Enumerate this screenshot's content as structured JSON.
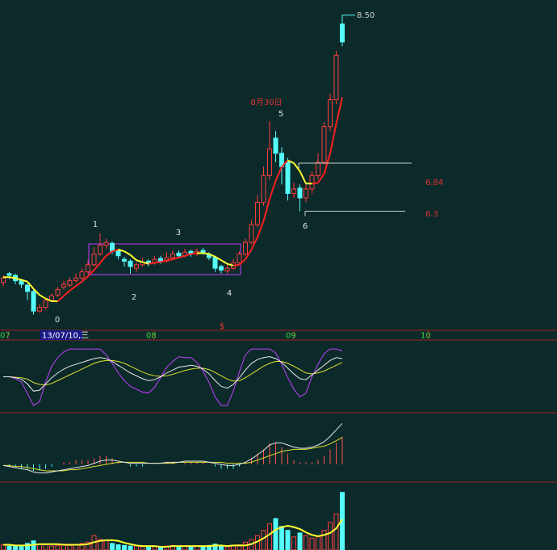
{
  "chart_data": {
    "type": "candlestick",
    "up_color": "#ff3c3c",
    "down_color": "#54fcfc",
    "ylim": [
      5.0,
      8.67
    ],
    "open": [
      5.5,
      5.6,
      5.58,
      5.52,
      5.47,
      5.4,
      5.18,
      5.22,
      5.3,
      5.36,
      5.45,
      5.47,
      5.52,
      5.55,
      5.62,
      5.7,
      5.82,
      5.92,
      5.94,
      5.86,
      5.76,
      5.74,
      5.66,
      5.7,
      5.74,
      5.72,
      5.77,
      5.74,
      5.78,
      5.83,
      5.8,
      5.85,
      5.82,
      5.86,
      5.82,
      5.78,
      5.68,
      5.63,
      5.66,
      5.72,
      5.82,
      5.95,
      6.15,
      6.4,
      6.7,
      7.12,
      6.95,
      6.85,
      6.5,
      6.56,
      6.45,
      6.55,
      6.7,
      6.85,
      7.25,
      7.55,
      8.4
    ],
    "high": [
      5.58,
      5.62,
      5.6,
      5.54,
      5.49,
      5.42,
      5.26,
      5.32,
      5.38,
      5.45,
      5.52,
      5.56,
      5.6,
      5.66,
      5.75,
      5.9,
      6.05,
      5.99,
      5.96,
      5.88,
      5.79,
      5.76,
      5.73,
      5.78,
      5.76,
      5.8,
      5.8,
      5.84,
      5.86,
      5.86,
      5.88,
      5.87,
      5.88,
      5.89,
      5.84,
      5.8,
      5.7,
      5.7,
      5.76,
      5.85,
      5.99,
      6.2,
      6.48,
      6.8,
      7.31,
      7.2,
      7.02,
      6.9,
      6.62,
      6.6,
      6.6,
      6.75,
      6.95,
      7.3,
      7.62,
      8.1,
      8.5
    ],
    "low": [
      5.46,
      5.54,
      5.48,
      5.44,
      5.3,
      5.14,
      5.16,
      5.2,
      5.28,
      5.33,
      5.42,
      5.45,
      5.5,
      5.53,
      5.6,
      5.68,
      5.8,
      5.88,
      5.82,
      5.76,
      5.68,
      5.6,
      5.62,
      5.68,
      5.68,
      5.7,
      5.71,
      5.72,
      5.76,
      5.77,
      5.78,
      5.79,
      5.8,
      5.81,
      5.75,
      5.62,
      5.6,
      5.6,
      5.64,
      5.7,
      5.8,
      5.93,
      6.12,
      6.36,
      6.65,
      6.85,
      6.6,
      6.42,
      6.45,
      6.3,
      6.4,
      6.5,
      6.66,
      6.82,
      7.2,
      7.5,
      8.15
    ],
    "close": [
      5.55,
      5.58,
      5.52,
      5.48,
      5.4,
      5.18,
      5.22,
      5.3,
      5.35,
      5.42,
      5.48,
      5.52,
      5.55,
      5.62,
      5.7,
      5.82,
      5.92,
      5.95,
      5.85,
      5.8,
      5.74,
      5.68,
      5.7,
      5.73,
      5.72,
      5.76,
      5.74,
      5.78,
      5.82,
      5.8,
      5.84,
      5.82,
      5.85,
      5.83,
      5.78,
      5.66,
      5.64,
      5.66,
      5.72,
      5.82,
      5.95,
      6.15,
      6.4,
      6.7,
      7.0,
      6.95,
      6.8,
      6.5,
      6.55,
      6.45,
      6.55,
      6.7,
      6.85,
      7.25,
      7.55,
      8.05,
      8.2
    ],
    "ma": [
      5.56,
      5.56,
      5.55,
      5.53,
      5.51,
      5.43,
      5.36,
      5.32,
      5.29,
      5.29,
      5.35,
      5.41,
      5.46,
      5.51,
      5.57,
      5.64,
      5.72,
      5.8,
      5.85,
      5.87,
      5.85,
      5.81,
      5.75,
      5.73,
      5.71,
      5.72,
      5.73,
      5.75,
      5.76,
      5.78,
      5.8,
      5.82,
      5.83,
      5.83,
      5.82,
      5.79,
      5.75,
      5.71,
      5.69,
      5.7,
      5.76,
      5.87,
      6.01,
      6.19,
      6.44,
      6.64,
      6.8,
      6.87,
      6.84,
      6.75,
      6.61,
      6.61,
      6.62,
      6.72,
      6.95,
      7.28,
      7.58
    ],
    "annotations": [
      "0",
      "1",
      "2",
      "3",
      "4",
      "5",
      "6",
      "8月30日"
    ],
    "levels": [
      6.84,
      6.3
    ],
    "max_label": {
      "value": 8.5,
      "label": "8.50"
    },
    "date_labels": [
      "07",
      "08",
      "09",
      "10"
    ],
    "cursor_date": "13/07/10,三",
    "marker": "$",
    "kdj": {
      "ylim": [
        -20,
        120
      ],
      "k": [
        50,
        50,
        48,
        45,
        35,
        20,
        22,
        35,
        48,
        58,
        66,
        72,
        76,
        80,
        84,
        88,
        90,
        88,
        82,
        74,
        66,
        58,
        52,
        46,
        42,
        44,
        50,
        58,
        64,
        70,
        72,
        74,
        72,
        66,
        56,
        42,
        30,
        26,
        34,
        48,
        64,
        78,
        86,
        90,
        92,
        88,
        80,
        68,
        56,
        46,
        44,
        54,
        64,
        74,
        84,
        90,
        88
      ],
      "d": [
        50,
        50,
        49,
        48,
        45,
        38,
        34,
        33,
        36,
        42,
        48,
        54,
        60,
        66,
        72,
        78,
        82,
        84,
        84,
        82,
        78,
        72,
        66,
        60,
        55,
        52,
        51,
        52,
        55,
        59,
        63,
        66,
        68,
        68,
        65,
        59,
        52,
        45,
        41,
        42,
        48,
        56,
        64,
        72,
        78,
        82,
        82,
        78,
        72,
        65,
        58,
        56,
        58,
        62,
        68,
        74,
        80
      ],
      "j": [
        50,
        50,
        46,
        39,
        15,
        -10,
        -2,
        39,
        72,
        90,
        102,
        108,
        108,
        108,
        108,
        108,
        108,
        96,
        78,
        58,
        42,
        30,
        24,
        18,
        16,
        28,
        48,
        70,
        82,
        92,
        90,
        90,
        80,
        62,
        38,
        8,
        -10,
        -10,
        20,
        60,
        96,
        108,
        108,
        108,
        108,
        100,
        76,
        48,
        24,
        8,
        16,
        50,
        76,
        98,
        108,
        108,
        104
      ]
    },
    "macd": {
      "ylim": [
        -0.15,
        0.45
      ],
      "dif": [
        -0.01,
        -0.02,
        -0.03,
        -0.04,
        -0.05,
        -0.07,
        -0.08,
        -0.08,
        -0.07,
        -0.06,
        -0.05,
        -0.04,
        -0.03,
        -0.02,
        -0.01,
        0.01,
        0.03,
        0.04,
        0.04,
        0.03,
        0.02,
        0.01,
        0.01,
        0.01,
        0.01,
        0.01,
        0.01,
        0.02,
        0.02,
        0.02,
        0.03,
        0.03,
        0.03,
        0.03,
        0.02,
        0.01,
        0.0,
        -0.01,
        -0.01,
        0.0,
        0.02,
        0.05,
        0.09,
        0.13,
        0.18,
        0.2,
        0.2,
        0.18,
        0.16,
        0.15,
        0.15,
        0.16,
        0.18,
        0.21,
        0.26,
        0.32,
        0.38
      ],
      "dea": [
        -0.01,
        -0.01,
        -0.02,
        -0.02,
        -0.03,
        -0.04,
        -0.05,
        -0.06,
        -0.06,
        -0.06,
        -0.06,
        -0.05,
        -0.05,
        -0.04,
        -0.03,
        -0.02,
        -0.01,
        0.0,
        0.01,
        0.02,
        0.02,
        0.02,
        0.02,
        0.02,
        0.01,
        0.01,
        0.01,
        0.01,
        0.01,
        0.02,
        0.02,
        0.02,
        0.02,
        0.02,
        0.02,
        0.02,
        0.02,
        0.01,
        0.01,
        0.01,
        0.01,
        0.02,
        0.04,
        0.06,
        0.08,
        0.1,
        0.12,
        0.13,
        0.14,
        0.14,
        0.14,
        0.15,
        0.16,
        0.17,
        0.19,
        0.22,
        0.25
      ],
      "hist": [
        0,
        -0.02,
        -0.02,
        -0.04,
        -0.04,
        -0.06,
        -0.06,
        -0.04,
        -0.02,
        0,
        0.02,
        0.02,
        0.04,
        0.04,
        0.04,
        0.06,
        0.08,
        0.08,
        0.06,
        0.02,
        0,
        -0.02,
        -0.02,
        -0.02,
        0,
        0,
        0,
        0.02,
        0.02,
        0,
        0.02,
        0.02,
        0.02,
        0.02,
        0,
        -0.02,
        -0.04,
        -0.04,
        -0.04,
        -0.02,
        0.02,
        0.06,
        0.1,
        0.14,
        0.2,
        0.2,
        0.16,
        0.1,
        0.04,
        0.02,
        0.02,
        0.02,
        0.04,
        0.08,
        0.14,
        0.2,
        0.26
      ]
    },
    "volume": {
      "ylim": [
        0,
        100
      ],
      "values": [
        8,
        6,
        7,
        5,
        10,
        14,
        9,
        8,
        6,
        7,
        9,
        7,
        8,
        10,
        12,
        22,
        16,
        14,
        10,
        8,
        7,
        6,
        6,
        5,
        6,
        5,
        5,
        6,
        7,
        6,
        6,
        5,
        6,
        5,
        7,
        9,
        6,
        5,
        6,
        8,
        12,
        16,
        22,
        30,
        40,
        48,
        36,
        30,
        20,
        26,
        22,
        18,
        20,
        30,
        42,
        55,
        88
      ],
      "ma": [
        8,
        8,
        7,
        7,
        7,
        8,
        9,
        9,
        9,
        9,
        8,
        8,
        8,
        8,
        9,
        12,
        14,
        15,
        15,
        14,
        11,
        9,
        7,
        6,
        6,
        6,
        5,
        5,
        6,
        6,
        6,
        6,
        6,
        6,
        6,
        7,
        7,
        6,
        7,
        7,
        7,
        9,
        13,
        18,
        24,
        31,
        35,
        37,
        35,
        32,
        27,
        23,
        21,
        23,
        26,
        33,
        47
      ]
    }
  }
}
